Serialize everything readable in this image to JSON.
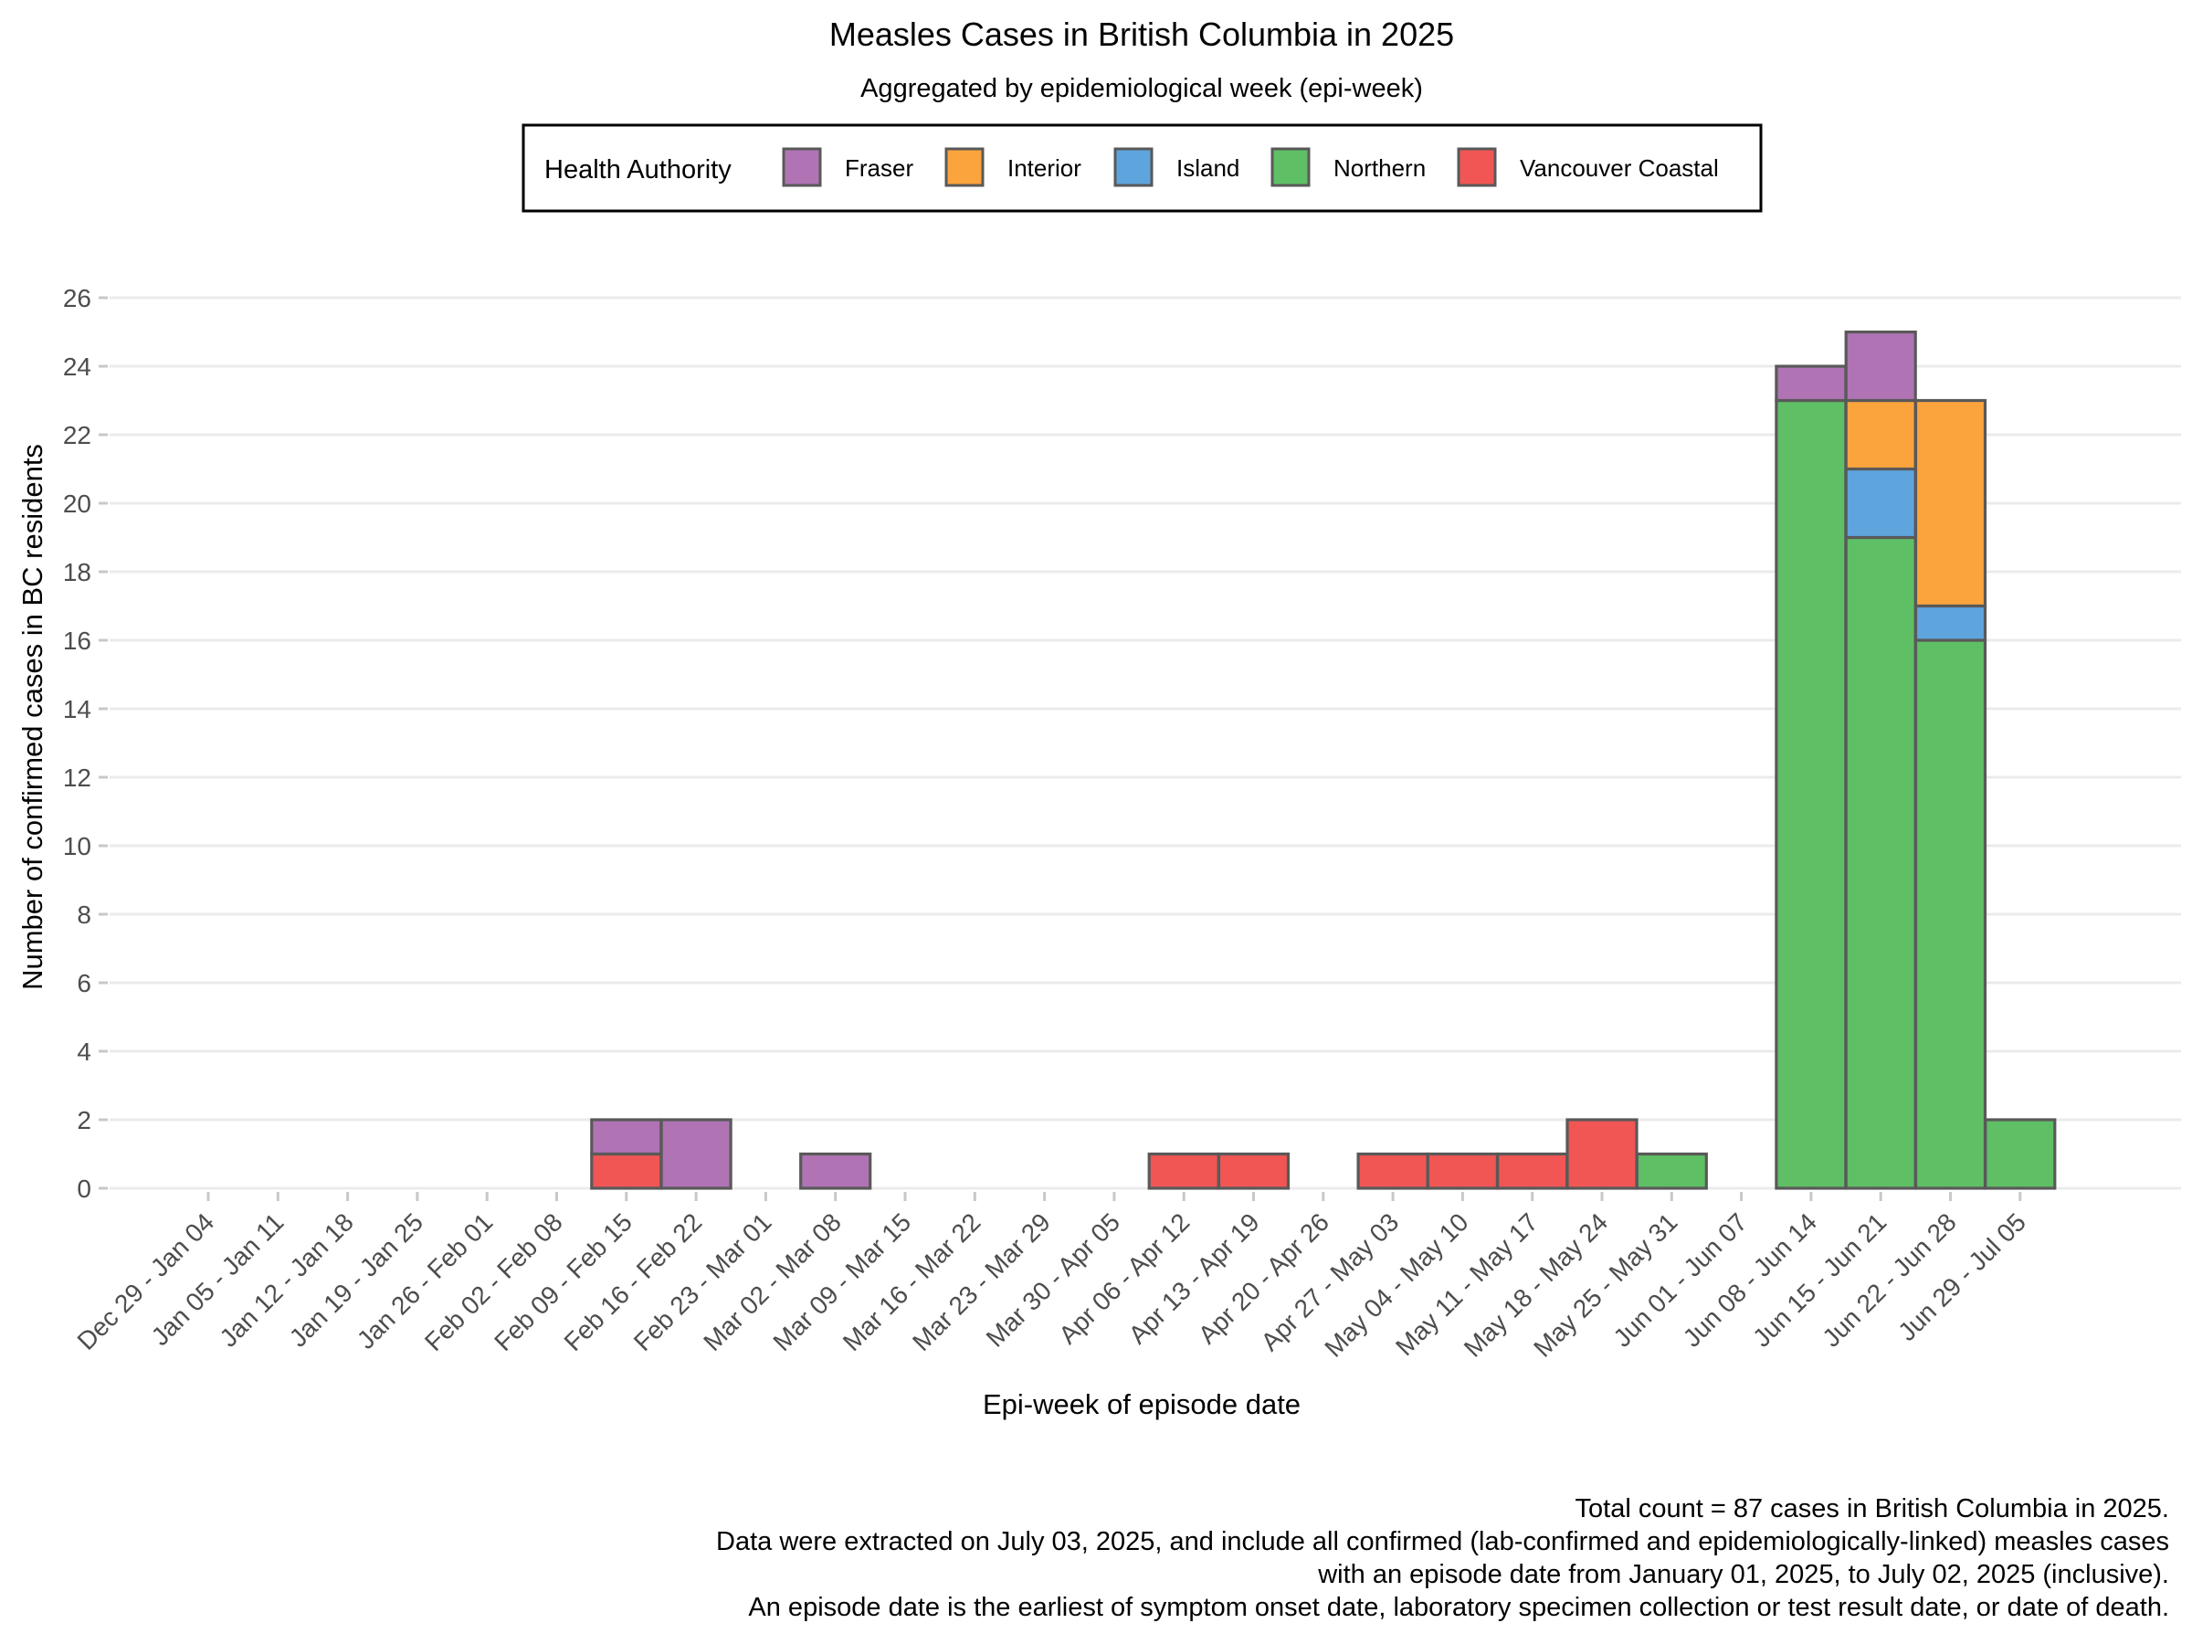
{
  "chart_data": {
    "type": "bar",
    "stacked": true,
    "title": "Measles Cases in British Columbia in 2025",
    "subtitle": "Aggregated by epidemiological week (epi-week)",
    "xlabel": "Epi-week of episode date",
    "ylabel": "Number of confirmed cases in BC residents",
    "ylim": [
      0,
      26
    ],
    "yticks": [
      0,
      2,
      4,
      6,
      8,
      10,
      12,
      14,
      16,
      18,
      20,
      22,
      24,
      26
    ],
    "grid": "horizontal",
    "legend": {
      "title": "Health Authority",
      "position": "top",
      "entries": [
        "Fraser",
        "Interior",
        "Island",
        "Northern",
        "Vancouver Coastal"
      ]
    },
    "categories": [
      "Dec 29 - Jan 04",
      "Jan 05 - Jan 11",
      "Jan 12 - Jan 18",
      "Jan 19 - Jan 25",
      "Jan 26 - Feb 01",
      "Feb 02 - Feb 08",
      "Feb 09 - Feb 15",
      "Feb 16 - Feb 22",
      "Feb 23 - Mar 01",
      "Mar 02 - Mar 08",
      "Mar 09 - Mar 15",
      "Mar 16 - Mar 22",
      "Mar 23 - Mar 29",
      "Mar 30 - Apr 05",
      "Apr 06 - Apr 12",
      "Apr 13 - Apr 19",
      "Apr 20 - Apr 26",
      "Apr 27 - May 03",
      "May 04 - May 10",
      "May 11 - May 17",
      "May 18 - May 24",
      "May 25 - May 31",
      "Jun 01 - Jun 07",
      "Jun 08 - Jun 14",
      "Jun 15 - Jun 21",
      "Jun 22 - Jun 28",
      "Jun 29 - Jul 05"
    ],
    "series": [
      {
        "name": "Northern",
        "color": "#5FBF65",
        "values": [
          0,
          0,
          0,
          0,
          0,
          0,
          0,
          0,
          0,
          0,
          0,
          0,
          0,
          0,
          0,
          0,
          0,
          0,
          0,
          0,
          0,
          1,
          0,
          23,
          19,
          16,
          2
        ]
      },
      {
        "name": "Vancouver Coastal",
        "color": "#F15654",
        "values": [
          0,
          0,
          0,
          0,
          0,
          0,
          1,
          0,
          0,
          0,
          0,
          0,
          0,
          0,
          1,
          1,
          0,
          1,
          1,
          1,
          2,
          0,
          0,
          0,
          0,
          0,
          0
        ]
      },
      {
        "name": "Island",
        "color": "#5EA5DE",
        "values": [
          0,
          0,
          0,
          0,
          0,
          0,
          0,
          0,
          0,
          0,
          0,
          0,
          0,
          0,
          0,
          0,
          0,
          0,
          0,
          0,
          0,
          0,
          0,
          0,
          2,
          1,
          0
        ]
      },
      {
        "name": "Interior",
        "color": "#FBA43D",
        "values": [
          0,
          0,
          0,
          0,
          0,
          0,
          0,
          0,
          0,
          0,
          0,
          0,
          0,
          0,
          0,
          0,
          0,
          0,
          0,
          0,
          0,
          0,
          0,
          0,
          2,
          6,
          0
        ]
      },
      {
        "name": "Fraser",
        "color": "#B074B5",
        "values": [
          0,
          0,
          0,
          0,
          0,
          0,
          1,
          2,
          0,
          1,
          0,
          0,
          0,
          0,
          0,
          0,
          0,
          0,
          0,
          0,
          0,
          0,
          0,
          1,
          2,
          0,
          0
        ]
      }
    ],
    "caption": [
      "Total count = 87 cases in British Columbia in 2025.",
      "Data were extracted on July 03, 2025, and include all confirmed (lab-confirmed and epidemiologically-linked) measles cases",
      "with an episode date from January 01, 2025, to July 02, 2025 (inclusive).",
      "An episode date is the earliest of symptom onset date, laboratory specimen collection or test result date, or date of death."
    ]
  }
}
